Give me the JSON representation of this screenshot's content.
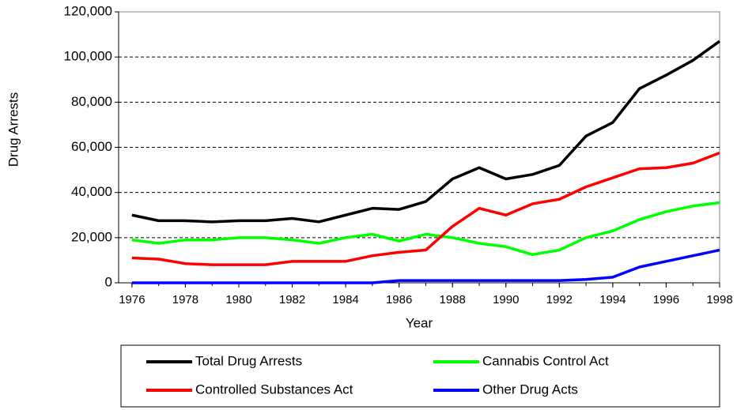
{
  "chart_data": {
    "type": "line",
    "x": [
      1976,
      1977,
      1978,
      1979,
      1980,
      1981,
      1982,
      1983,
      1984,
      1985,
      1986,
      1987,
      1988,
      1989,
      1990,
      1991,
      1992,
      1993,
      1994,
      1995,
      1996,
      1997,
      1998
    ],
    "series": [
      {
        "name": "Total Drug Arrests",
        "color": "#000000",
        "values": [
          30000,
          27500,
          27500,
          27000,
          27500,
          27500,
          28500,
          27000,
          30000,
          33000,
          32500,
          36000,
          46000,
          51000,
          46000,
          48000,
          52000,
          65000,
          71000,
          86000,
          92000,
          98500,
          107000
        ]
      },
      {
        "name": "Cannabis Control Act",
        "color": "#00ff00",
        "values": [
          19000,
          17500,
          19000,
          19000,
          20000,
          20000,
          19000,
          17500,
          20000,
          21500,
          18500,
          21500,
          20000,
          17500,
          16000,
          12500,
          14500,
          20000,
          23000,
          28000,
          31500,
          34000,
          35500
        ]
      },
      {
        "name": "Controlled Substances Act",
        "color": "#ff0000",
        "values": [
          11000,
          10500,
          8500,
          8000,
          8000,
          8000,
          9500,
          9500,
          9500,
          12000,
          13500,
          14500,
          25000,
          33000,
          30000,
          35000,
          37000,
          42500,
          46500,
          50500,
          51000,
          53000,
          57500
        ]
      },
      {
        "name": "Other Drug Acts",
        "color": "#0000ff",
        "values": [
          0,
          0,
          0,
          0,
          0,
          0,
          0,
          0,
          0,
          0,
          1000,
          1000,
          1000,
          1000,
          1000,
          1000,
          1000,
          1500,
          2500,
          7000,
          9500,
          12000,
          14500
        ]
      }
    ],
    "xlabel": "Year",
    "ylabel": "Drug Arrests",
    "xlim": [
      1975.5,
      1998
    ],
    "xticks": [
      1976,
      1978,
      1980,
      1982,
      1984,
      1986,
      1988,
      1990,
      1992,
      1994,
      1996,
      1998
    ],
    "ylim": [
      0,
      120000
    ],
    "yticks": [
      0,
      {
        "value": 20000,
        "label": "20,000"
      },
      {
        "value": 40000,
        "label": "40,000"
      },
      {
        "value": 60000,
        "label": "60,000"
      },
      {
        "value": 80000,
        "label": "80,000"
      },
      {
        "value": 100000,
        "label": "100,000"
      },
      {
        "value": 120000,
        "label": "120,000"
      }
    ],
    "grid": true,
    "legend": "bottom"
  }
}
